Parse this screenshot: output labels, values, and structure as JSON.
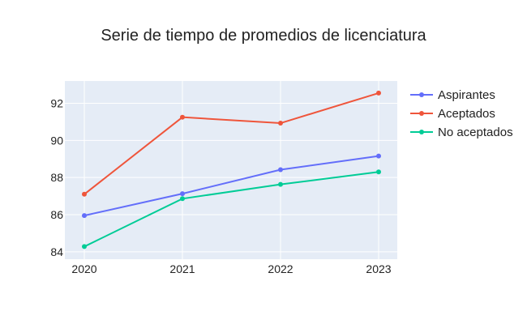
{
  "chart_data": {
    "type": "line",
    "title": "Serie de tiempo de promedios de licenciatura",
    "xlabel": "",
    "ylabel": "",
    "x": [
      "2020",
      "2021",
      "2022",
      "2023"
    ],
    "ylim": [
      83.6,
      93.2
    ],
    "yticks": [
      84,
      86,
      88,
      90,
      92
    ],
    "grid": true,
    "legend_position": "right",
    "plot_background": "#e5ecf6",
    "series": [
      {
        "name": "Aspirantes",
        "color": "#636efa",
        "values": [
          85.95,
          87.13,
          88.42,
          89.16
        ]
      },
      {
        "name": "Aceptados",
        "color": "#ef553b",
        "values": [
          87.1,
          91.25,
          90.93,
          92.55
        ]
      },
      {
        "name": "No aceptados",
        "color": "#00cc96",
        "values": [
          84.28,
          86.86,
          87.63,
          88.3
        ]
      }
    ]
  }
}
